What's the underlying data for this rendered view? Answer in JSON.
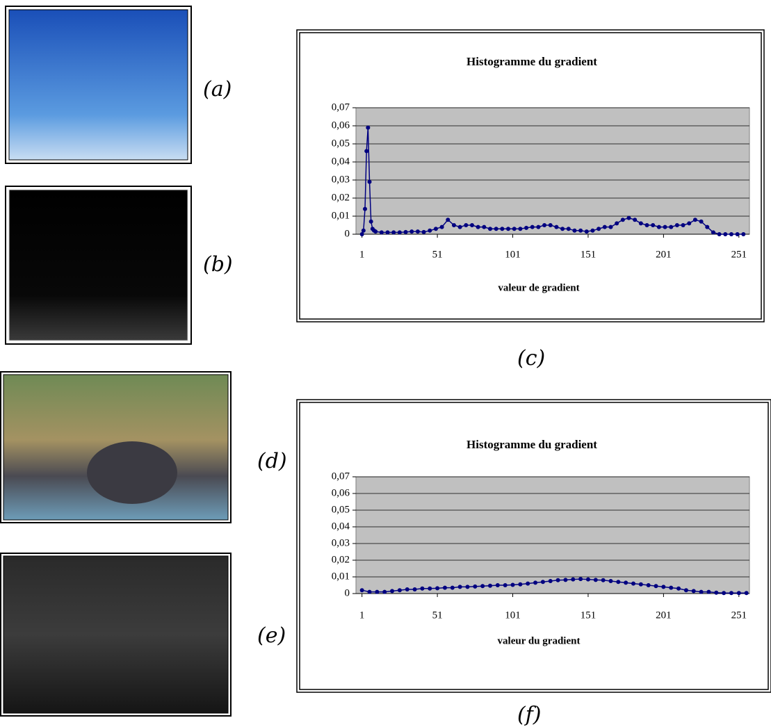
{
  "figure": {
    "labels": [
      "(a)",
      "(b)",
      "(c)",
      "(d)",
      "(e)",
      "(f)"
    ]
  },
  "chart_data": [
    {
      "type": "line",
      "title": "Histogramme du gradient",
      "x_label": "valeur de gradient",
      "color": "#000080",
      "background": "#c0c0c0",
      "grid": true,
      "xlim": [
        -3,
        258
      ],
      "ylim": [
        0,
        0.07
      ],
      "xticks": [
        1,
        51,
        101,
        151,
        201,
        251
      ],
      "yticks": [
        0,
        {
          "value": 0.01,
          "label": "0,01"
        },
        {
          "value": 0.02,
          "label": "0,02"
        },
        {
          "value": 0.03,
          "label": "0,03"
        },
        {
          "value": 0.04,
          "label": "0,04"
        },
        {
          "value": 0.05,
          "label": "0,05"
        },
        {
          "value": 0.06,
          "label": "0,06"
        },
        {
          "value": 0.07,
          "label": "0,07"
        }
      ],
      "x": [
        1,
        2,
        3,
        4,
        5,
        6,
        7,
        8,
        9,
        10,
        14,
        18,
        22,
        26,
        30,
        34,
        38,
        42,
        46,
        50,
        54,
        58,
        62,
        66,
        70,
        74,
        78,
        82,
        86,
        90,
        94,
        98,
        102,
        106,
        110,
        114,
        118,
        122,
        126,
        130,
        134,
        138,
        142,
        146,
        150,
        154,
        158,
        162,
        166,
        170,
        174,
        178,
        182,
        186,
        190,
        194,
        198,
        202,
        206,
        210,
        214,
        218,
        222,
        226,
        230,
        234,
        238,
        242,
        246,
        250,
        254
      ],
      "values": [
        0,
        0.002,
        0.014,
        0.046,
        0.059,
        0.029,
        0.007,
        0.003,
        0.002,
        0.0015,
        0.001,
        0.001,
        0.001,
        0.001,
        0.0012,
        0.0015,
        0.0015,
        0.0012,
        0.002,
        0.003,
        0.004,
        0.008,
        0.005,
        0.004,
        0.005,
        0.005,
        0.004,
        0.004,
        0.003,
        0.003,
        0.003,
        0.003,
        0.003,
        0.003,
        0.0035,
        0.004,
        0.004,
        0.005,
        0.005,
        0.004,
        0.003,
        0.003,
        0.002,
        0.002,
        0.0015,
        0.002,
        0.003,
        0.004,
        0.004,
        0.006,
        0.008,
        0.009,
        0.008,
        0.006,
        0.005,
        0.005,
        0.004,
        0.004,
        0.004,
        0.005,
        0.005,
        0.006,
        0.008,
        0.007,
        0.004,
        0.001,
        0,
        0,
        0,
        0,
        0
      ]
    },
    {
      "type": "line",
      "title": "Histogramme du gradient",
      "x_label": "valeur du gradient",
      "color": "#000080",
      "background": "#c0c0c0",
      "grid": true,
      "xlim": [
        -3,
        258
      ],
      "ylim": [
        0,
        0.07
      ],
      "xticks": [
        1,
        51,
        101,
        151,
        201,
        251
      ],
      "yticks": [
        0,
        {
          "value": 0.01,
          "label": "0,01"
        },
        {
          "value": 0.02,
          "label": "0,02"
        },
        {
          "value": 0.03,
          "label": "0,03"
        },
        {
          "value": 0.04,
          "label": "0,04"
        },
        {
          "value": 0.05,
          "label": "0,05"
        },
        {
          "value": 0.06,
          "label": "0,06"
        },
        {
          "value": 0.07,
          "label": "0,07"
        }
      ],
      "x": [
        1,
        6,
        11,
        16,
        21,
        26,
        31,
        36,
        41,
        46,
        51,
        56,
        61,
        66,
        71,
        76,
        81,
        86,
        91,
        96,
        101,
        106,
        111,
        116,
        121,
        126,
        131,
        136,
        141,
        146,
        151,
        156,
        161,
        166,
        171,
        176,
        181,
        186,
        191,
        196,
        201,
        206,
        211,
        216,
        221,
        226,
        231,
        236,
        241,
        246,
        251,
        256
      ],
      "values": [
        0.002,
        0.001,
        0.001,
        0.001,
        0.0015,
        0.002,
        0.0025,
        0.0025,
        0.003,
        0.003,
        0.0032,
        0.0035,
        0.0035,
        0.004,
        0.004,
        0.0042,
        0.0045,
        0.0047,
        0.005,
        0.005,
        0.0052,
        0.0055,
        0.006,
        0.0065,
        0.007,
        0.0075,
        0.008,
        0.0082,
        0.0085,
        0.0087,
        0.0085,
        0.0082,
        0.008,
        0.0075,
        0.007,
        0.0065,
        0.006,
        0.0055,
        0.005,
        0.0045,
        0.004,
        0.0035,
        0.003,
        0.002,
        0.0015,
        0.001,
        0.001,
        0.0005,
        0.0003,
        0.0003,
        0.0003,
        0.0003
      ]
    }
  ]
}
